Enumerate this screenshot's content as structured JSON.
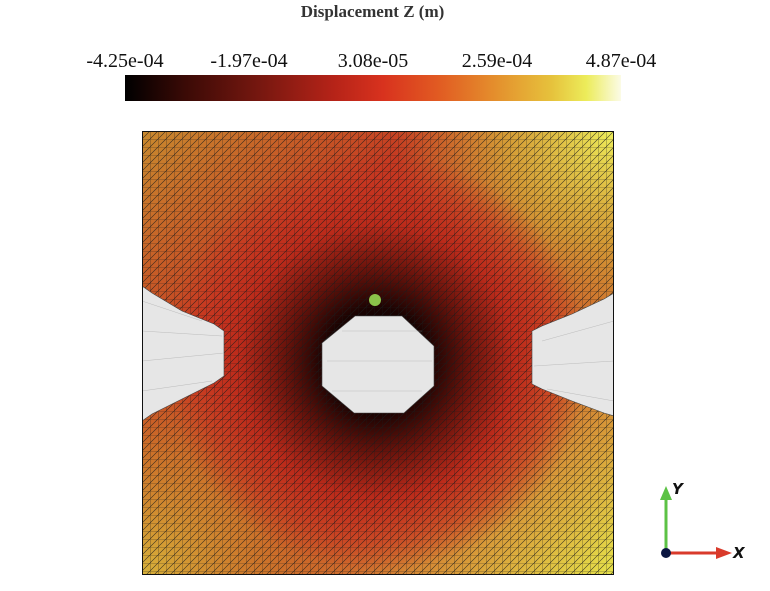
{
  "header": {
    "title": "Displacement Z (m)"
  },
  "colorbar": {
    "ticks": [
      "-4.25e-04",
      "-1.97e-04",
      "3.08e-05",
      "2.59e-04",
      "4.87e-04"
    ],
    "colors": [
      "#000000",
      "#7a1810",
      "#d8321e",
      "#e48c2c",
      "#ecec5a",
      "#fbfbe6"
    ]
  },
  "mesh": {
    "probe_color": "#8bc34a",
    "hole_color": "#e6e6e6"
  },
  "axes": {
    "x_label": "X",
    "y_label": "Y",
    "x_color": "#d93a2b",
    "y_color": "#5cc245"
  }
}
